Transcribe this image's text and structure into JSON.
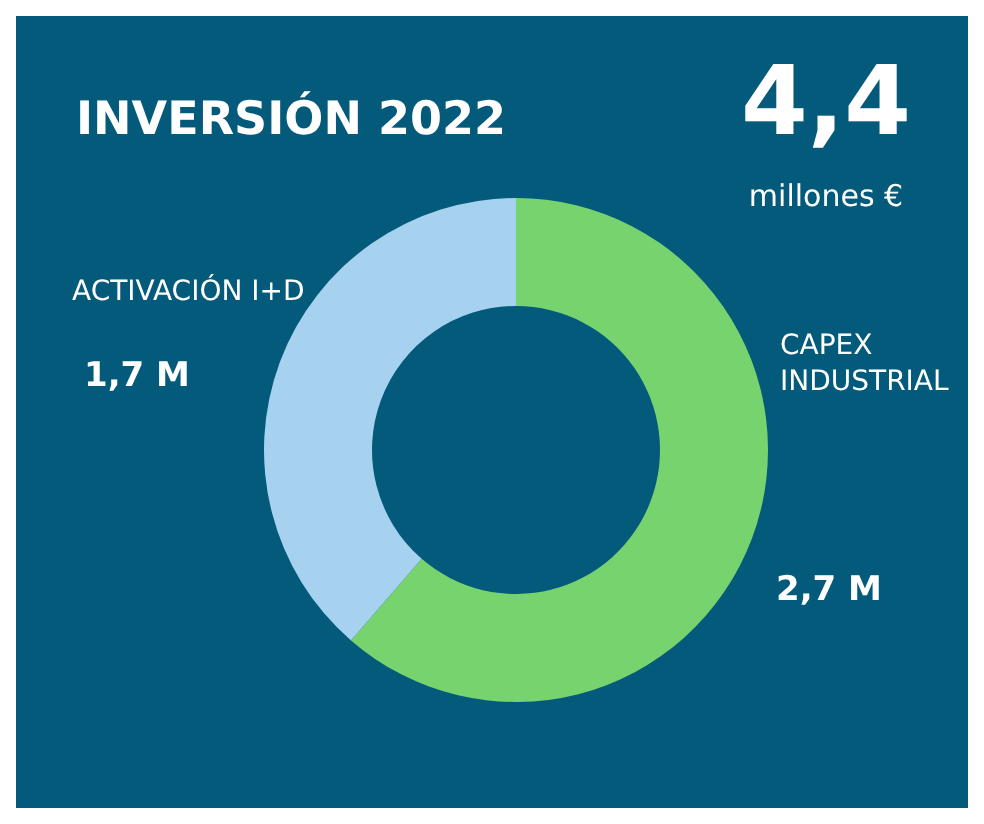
{
  "chart_data": {
    "type": "donut",
    "title": "INVERSIÓN 2022",
    "categories": [
      "CAPEX INDUSTRIAL",
      "ACTIVACIÓN I+D"
    ],
    "values": [
      2.7,
      1.7
    ],
    "colors": [
      "#77d36e",
      "#a6d1ef"
    ],
    "value_labels": [
      "2,7 M",
      "1,7 M"
    ],
    "annotations": [
      "4,4",
      "millones €"
    ]
  }
}
